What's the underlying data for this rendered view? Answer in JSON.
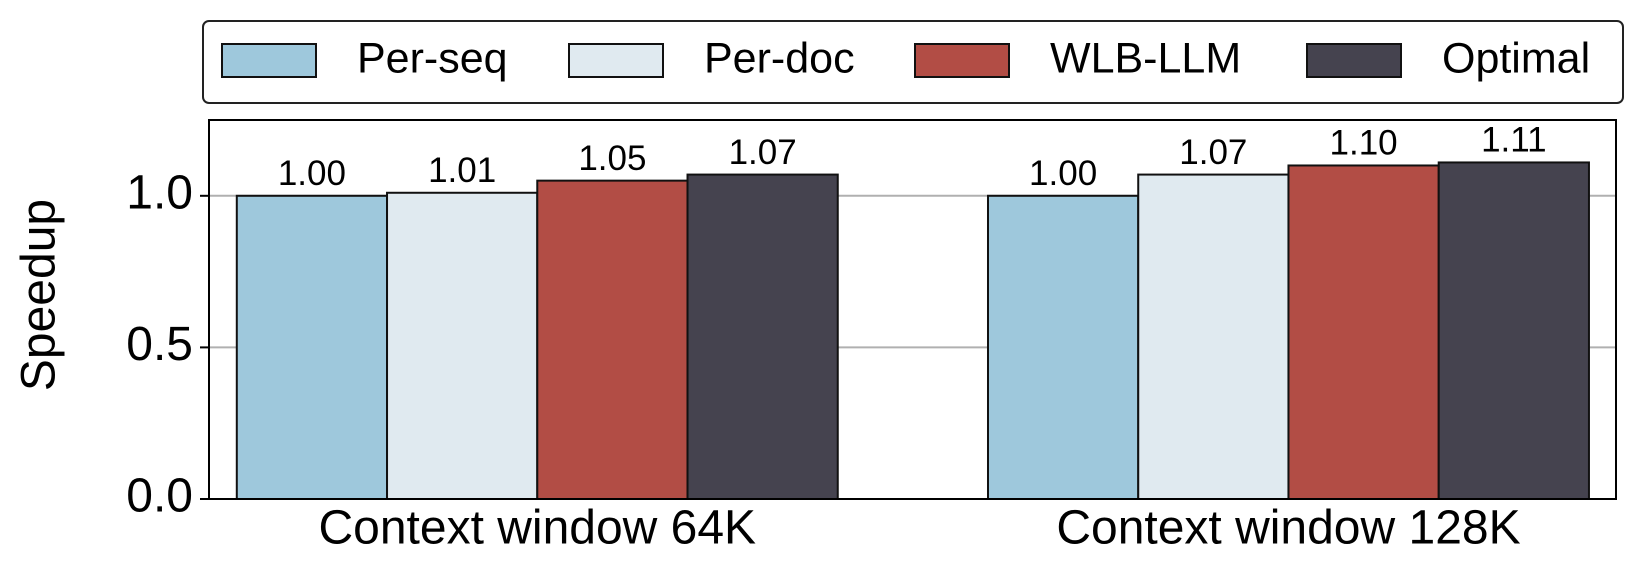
{
  "chart_data": {
    "type": "bar",
    "ylabel": "Speedup",
    "categories": [
      "Context window 64K",
      "Context window 128K"
    ],
    "series": [
      {
        "name": "Per-seq",
        "color": "#9ec8dc",
        "values": [
          1.0,
          1.0
        ],
        "value_labels": [
          "1.00",
          "1.00"
        ]
      },
      {
        "name": "Per-doc",
        "color": "#e0eaf0",
        "values": [
          1.01,
          1.07
        ],
        "value_labels": [
          "1.01",
          "1.07"
        ]
      },
      {
        "name": "WLB-LLM",
        "color": "#b24d45",
        "values": [
          1.05,
          1.1
        ],
        "value_labels": [
          "1.05",
          "1.10"
        ]
      },
      {
        "name": "Optimal",
        "color": "#45434f",
        "values": [
          1.07,
          1.11
        ],
        "value_labels": [
          "1.07",
          "1.11"
        ]
      }
    ],
    "ylim": [
      0,
      1.25
    ],
    "yticks": [
      {
        "value": 0,
        "label": "0.0"
      },
      {
        "value": 0.5,
        "label": "0.5"
      },
      {
        "value": 1,
        "label": "1.0"
      }
    ],
    "grid": true,
    "legend": "top"
  }
}
